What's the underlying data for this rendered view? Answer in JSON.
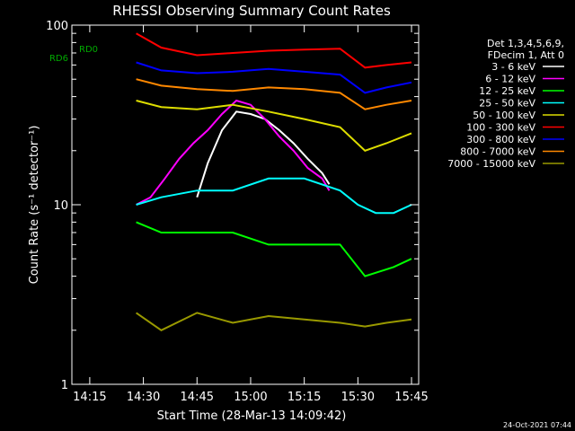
{
  "chart_data": {
    "type": "line",
    "title": "RHESSI Observing Summary Count Rates",
    "xlabel": "Start Time (28-Mar-13 14:09:42)",
    "ylabel": "Count Rate (s⁻¹ detector⁻¹)",
    "yscale": "log",
    "ylim": [
      1,
      100
    ],
    "xlim": [
      "14:10",
      "15:47"
    ],
    "x_ticks": [
      "14:15",
      "14:30",
      "14:45",
      "15:00",
      "15:15",
      "15:30",
      "15:45"
    ],
    "y_ticks": [
      "1",
      "10",
      "100"
    ],
    "legend_header": [
      "Det 1,3,4,5,6,9,",
      "FDecim 1, Att 0"
    ],
    "legend_position": "right",
    "footer": "24-Oct-2021 07:44",
    "flag_labels": [
      "RD0",
      "RD6"
    ],
    "series": [
      {
        "name": "3 - 6 keV",
        "color": "#ffffff",
        "x": [
          "14:45",
          "14:48",
          "14:52",
          "14:56",
          "15:00",
          "15:04",
          "15:08",
          "15:12",
          "15:16",
          "15:20",
          "15:22"
        ],
        "values": [
          11,
          17,
          26,
          33,
          32,
          30,
          26,
          22,
          18,
          15,
          13
        ]
      },
      {
        "name": "6 - 12 keV",
        "color": "#ff00ff",
        "x": [
          "14:28",
          "14:32",
          "14:36",
          "14:40",
          "14:44",
          "14:48",
          "14:52",
          "14:56",
          "15:00",
          "15:04",
          "15:08",
          "15:12",
          "15:16",
          "15:20",
          "15:22"
        ],
        "values": [
          10,
          11,
          14,
          18,
          22,
          26,
          32,
          38,
          36,
          30,
          24,
          20,
          16,
          14,
          12
        ]
      },
      {
        "name": "12 - 25 keV",
        "color": "#00ff00",
        "x": [
          "14:28",
          "14:35",
          "14:45",
          "14:55",
          "15:05",
          "15:15",
          "15:25",
          "15:32",
          "15:40",
          "15:45"
        ],
        "values": [
          8,
          7,
          7,
          7,
          6,
          6,
          6,
          4,
          4.5,
          5
        ]
      },
      {
        "name": "25 - 50 keV",
        "color": "#00ffff",
        "x": [
          "14:28",
          "14:35",
          "14:45",
          "14:55",
          "15:05",
          "15:15",
          "15:25",
          "15:30",
          "15:35",
          "15:40",
          "15:45"
        ],
        "values": [
          10,
          11,
          12,
          12,
          14,
          14,
          12,
          10,
          9,
          9,
          10
        ]
      },
      {
        "name": "50 - 100 keV",
        "color": "#dddd00",
        "x": [
          "14:28",
          "14:35",
          "14:45",
          "14:55",
          "15:05",
          "15:15",
          "15:25",
          "15:32",
          "15:38",
          "15:45"
        ],
        "values": [
          38,
          35,
          34,
          36,
          33,
          30,
          27,
          20,
          22,
          25
        ]
      },
      {
        "name": "100 - 300 keV",
        "color": "#ff0000",
        "x": [
          "14:28",
          "14:35",
          "14:45",
          "14:55",
          "15:05",
          "15:15",
          "15:25",
          "15:32",
          "15:38",
          "15:45"
        ],
        "values": [
          90,
          75,
          68,
          70,
          72,
          73,
          74,
          58,
          60,
          62
        ]
      },
      {
        "name": "300 - 800 keV",
        "color": "#0000ff",
        "x": [
          "14:28",
          "14:35",
          "14:45",
          "14:55",
          "15:05",
          "15:15",
          "15:25",
          "15:32",
          "15:38",
          "15:45"
        ],
        "values": [
          62,
          56,
          54,
          55,
          57,
          55,
          53,
          42,
          45,
          48
        ]
      },
      {
        "name": "800 - 7000 keV",
        "color": "#ff8800",
        "x": [
          "14:28",
          "14:35",
          "14:45",
          "14:55",
          "15:05",
          "15:15",
          "15:25",
          "15:32",
          "15:38",
          "15:45"
        ],
        "values": [
          50,
          46,
          44,
          43,
          45,
          44,
          42,
          34,
          36,
          38
        ]
      },
      {
        "name": "7000 - 15000 keV",
        "color": "#999900",
        "x": [
          "14:28",
          "14:35",
          "14:45",
          "14:55",
          "15:05",
          "15:15",
          "15:25",
          "15:32",
          "15:38",
          "15:45"
        ],
        "values": [
          2.5,
          2,
          2.5,
          2.2,
          2.4,
          2.3,
          2.2,
          2.1,
          2.2,
          2.3
        ]
      }
    ]
  }
}
